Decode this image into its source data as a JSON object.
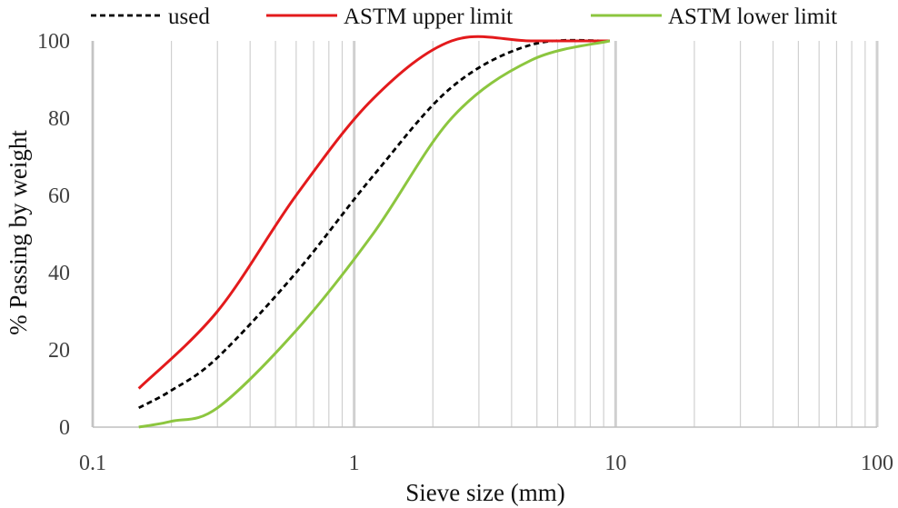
{
  "chart_data": {
    "type": "line",
    "title": "",
    "xlabel": "Sieve size (mm)",
    "ylabel": "% Passing by weight",
    "xscale": "log",
    "xlim": [
      0.1,
      100
    ],
    "ylim": [
      0,
      100
    ],
    "x_ticks": [
      "0.1",
      "1",
      "10",
      "100"
    ],
    "y_ticks": [
      "0",
      "20",
      "40",
      "60",
      "80",
      "100"
    ],
    "grid": "vertical minor (log) and major gridlines, no horizontal gridlines",
    "legend_position": "top",
    "series": [
      {
        "name": "used",
        "color": "#000000",
        "style": "dashed",
        "points": [
          [
            0.15,
            5
          ],
          [
            0.2,
            9.5
          ],
          [
            0.3,
            18
          ],
          [
            0.6,
            40
          ],
          [
            1.18,
            65
          ],
          [
            2.36,
            88
          ],
          [
            4.75,
            99
          ],
          [
            9.5,
            100
          ]
        ]
      },
      {
        "name": "ASTM upper limit",
        "color": "#e31a1c",
        "style": "solid",
        "points": [
          [
            0.15,
            10
          ],
          [
            0.3,
            30
          ],
          [
            0.6,
            60
          ],
          [
            1.18,
            85
          ],
          [
            2.36,
            100
          ],
          [
            4.75,
            100
          ],
          [
            9.5,
            100
          ]
        ]
      },
      {
        "name": "ASTM lower limit",
        "color": "#8cc63f",
        "style": "solid",
        "points": [
          [
            0.15,
            0
          ],
          [
            0.2,
            1.5
          ],
          [
            0.3,
            5
          ],
          [
            0.6,
            25
          ],
          [
            1.18,
            50
          ],
          [
            2.36,
            80
          ],
          [
            4.75,
            95
          ],
          [
            9.5,
            100
          ]
        ]
      }
    ]
  }
}
